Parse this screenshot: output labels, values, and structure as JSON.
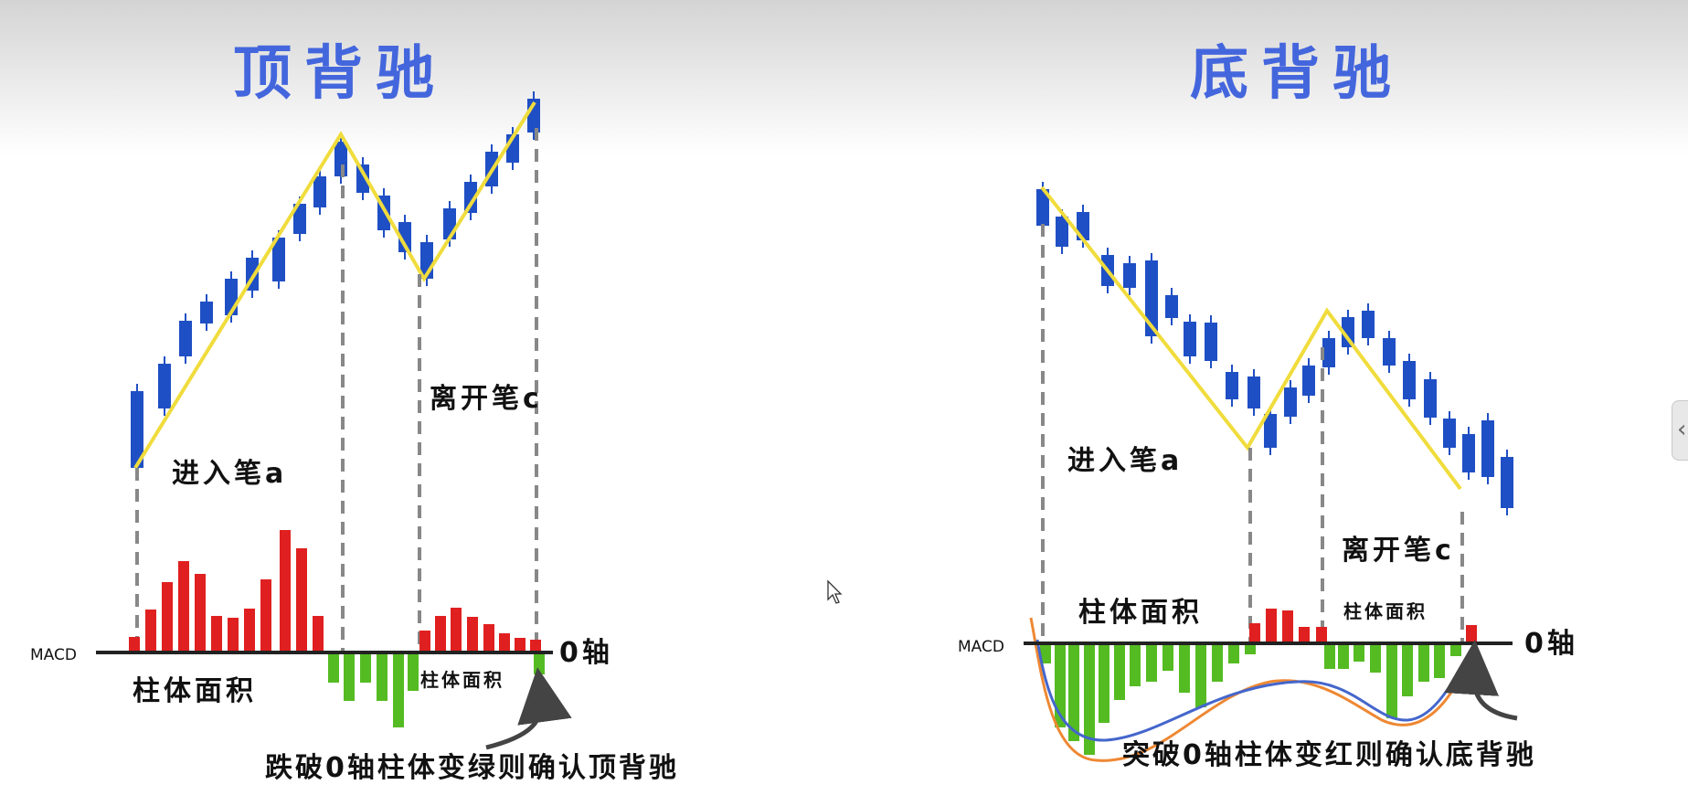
{
  "top_divergence": {
    "title": "顶背驰",
    "entry_label": "进入笔a",
    "exit_label": "离开笔c",
    "area_label_a": "柱体面积",
    "area_label_c": "柱体面积",
    "macd_label": "MACD",
    "zero_axis_label": "0轴",
    "caption": "跌破0轴柱体变绿则确认顶背驰"
  },
  "bottom_divergence": {
    "title": "底背驰",
    "entry_label": "进入笔a",
    "exit_label": "离开笔c",
    "area_label_a": "柱体面积",
    "area_label_c": "柱体面积",
    "macd_label": "MACD",
    "zero_axis_label": "0轴",
    "caption": "突破0轴柱体变红则确认底背驰"
  },
  "side_panel": {
    "toggle_icon": "chevron-left-icon"
  },
  "colors": {
    "title": "#4466dd",
    "candle": "#1f4fc4",
    "pen_line": "#f0dc3c",
    "bar_red": "#e02020",
    "bar_green": "#55bb22",
    "curve_orange": "#ee8833",
    "curve_blue": "#4466cc",
    "axis": "#222222",
    "guide": "#888888"
  }
}
